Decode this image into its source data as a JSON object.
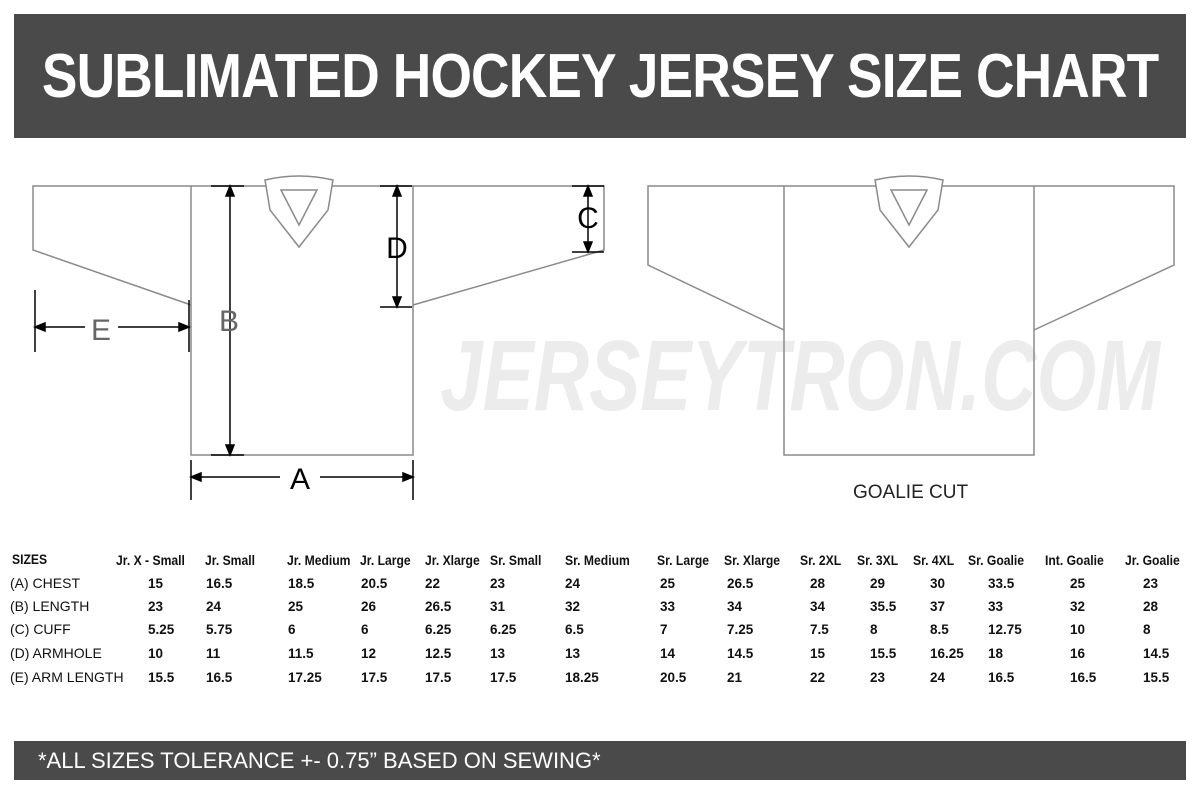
{
  "title": "SUBLIMATED HOCKEY JERSEY SIZE CHART",
  "watermark": "JERSEYTRON.COM",
  "diagram": {
    "labels": {
      "a": "A",
      "b": "B",
      "c": "C",
      "d": "D",
      "e": "E"
    },
    "goalie_label": "GOALIE CUT"
  },
  "table": {
    "corner": "SIZES",
    "columns": [
      "Jr. X - Small",
      "Jr. Small",
      "Jr. Medium",
      "Jr. Large",
      "Jr. Xlarge",
      "Sr. Small",
      "Sr. Medium",
      "Sr. Large",
      "Sr. Xlarge",
      "Sr. 2XL",
      "Sr. 3XL",
      "Sr. 4XL",
      "Sr. Goalie",
      "Int. Goalie",
      "Jr. Goalie"
    ],
    "rows": [
      {
        "label": "(A) CHEST",
        "values": [
          "15",
          "16.5",
          "18.5",
          "20.5",
          "22",
          "23",
          "24",
          "25",
          "26.5",
          "28",
          "29",
          "30",
          "33.5",
          "25",
          "23"
        ]
      },
      {
        "label": "(B) LENGTH",
        "values": [
          "23",
          "24",
          "25",
          "26",
          "26.5",
          "31",
          "32",
          "33",
          "34",
          "34",
          "35.5",
          "37",
          "33",
          "32",
          "28"
        ]
      },
      {
        "label": "(C) CUFF",
        "values": [
          "5.25",
          "5.75",
          "6",
          "6",
          "6.25",
          "6.25",
          "6.5",
          "7",
          "7.25",
          "7.5",
          "8",
          "8.5",
          "12.75",
          "10",
          "8"
        ]
      },
      {
        "label": "(D) ARMHOLE",
        "values": [
          "10",
          "11",
          "11.5",
          "12",
          "12.5",
          "13",
          "13",
          "14",
          "14.5",
          "15",
          "15.5",
          "16.25",
          "18",
          "16",
          "14.5"
        ]
      },
      {
        "label": "(E) ARM LENGTH",
        "values": [
          "15.5",
          "16.5",
          "17.25",
          "17.5",
          "17.5",
          "17.5",
          "18.25",
          "20.5",
          "21",
          "22",
          "23",
          "24",
          "16.5",
          "16.5",
          "15.5"
        ]
      }
    ]
  },
  "footer": "*ALL SIZES TOLERANCE +- 0.75” BASED ON SEWING*"
}
